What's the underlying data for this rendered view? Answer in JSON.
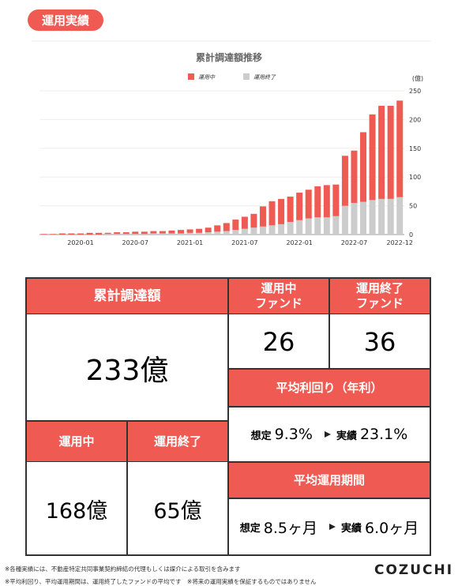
{
  "badge": "運用実績",
  "chart_data": {
    "type": "bar",
    "stacked": true,
    "title": "累計調達額推移",
    "ylabel": "(億)",
    "categories": [
      null,
      null,
      null,
      null,
      "2020-01",
      null,
      null,
      null,
      null,
      null,
      "2020-07",
      null,
      null,
      null,
      null,
      null,
      "2021-01",
      null,
      null,
      null,
      null,
      null,
      "2021-07",
      null,
      null,
      null,
      null,
      null,
      "2022-01",
      null,
      null,
      null,
      null,
      null,
      "2022-07",
      null,
      null,
      null,
      null,
      "2022-12"
    ],
    "series": [
      {
        "name": "運用中",
        "color": "#ef5a52",
        "values": [
          1,
          1,
          2,
          2,
          2,
          3,
          3,
          2,
          3,
          3,
          4,
          4,
          4,
          4,
          5,
          6,
          6,
          7,
          8,
          11,
          14,
          18,
          21,
          24,
          35,
          42,
          44,
          44,
          48,
          50,
          54,
          56,
          55,
          87,
          91,
          121,
          149,
          162,
          162,
          168
        ]
      },
      {
        "name": "運用終了",
        "color": "#cccccc",
        "values": [
          0,
          0,
          0,
          0,
          0,
          0,
          0,
          1,
          1,
          1,
          1,
          1,
          2,
          2,
          2,
          2,
          3,
          3,
          4,
          5,
          6,
          8,
          10,
          12,
          14,
          16,
          18,
          22,
          25,
          28,
          30,
          30,
          32,
          50,
          55,
          57,
          60,
          62,
          62,
          65
        ]
      }
    ],
    "ylim": [
      0,
      250
    ],
    "yticks": [
      0,
      50,
      100,
      150,
      200,
      250
    ],
    "grid": true
  },
  "table": {
    "total_header": "累計調達額",
    "total_value": "233億",
    "active_fund_header": [
      "運用中",
      "ファンド"
    ],
    "active_fund_value": 26,
    "ended_fund_header": [
      "運用終了",
      "ファンド"
    ],
    "ended_fund_value": 36,
    "yield_header": "平均利回り（年利）",
    "yield_expected_label": "想定",
    "yield_expected": "9.3%",
    "yield_actual_label": "実績",
    "yield_actual": "23.1%",
    "active_header": "運用中",
    "active_value": "168億",
    "ended_header": "運用終了",
    "ended_value": "65億",
    "period_header": "平均運用期間",
    "period_expected_label": "想定",
    "period_expected": "8.5ヶ月",
    "period_actual_label": "実績",
    "period_actual": "6.0ヶ月"
  },
  "footnotes": [
    "※各種実績には、不動産特定共同事業契約締結の代理もしくは媒介による取引を含みます",
    "※平均利回り、平均運用期間は、運用終了したファンドの平均です　※将来の運用実績を保証するものではありません"
  ],
  "logo": "COZUCHI"
}
